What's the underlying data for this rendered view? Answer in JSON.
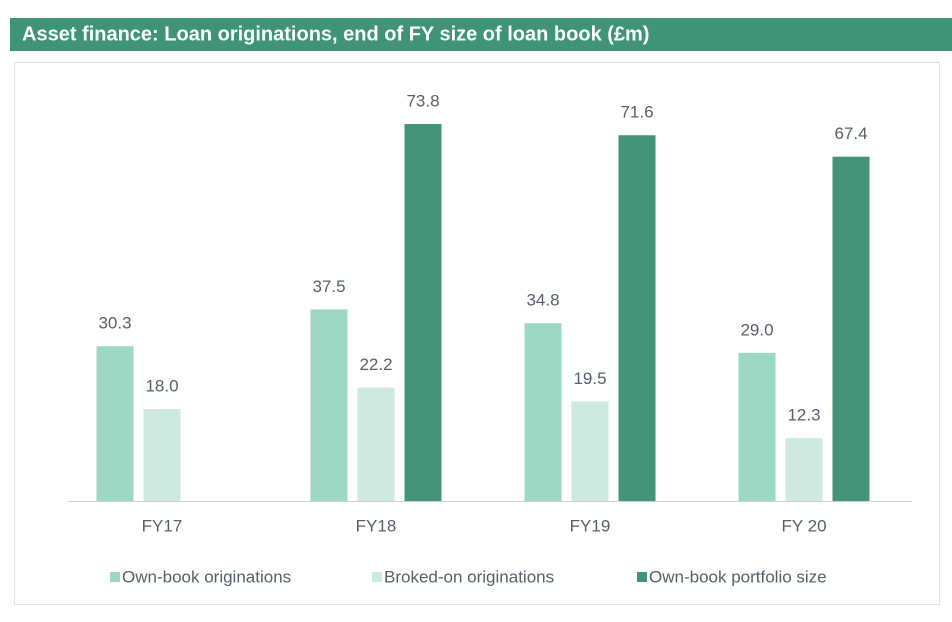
{
  "chart_data": {
    "type": "bar",
    "title": "Asset finance: Loan originations, end of FY size of loan book (£m)",
    "categories": [
      "FY17",
      "FY18",
      "FY19",
      "FY 20"
    ],
    "series": [
      {
        "name": "Own-book originations",
        "color": "#9dd8c6",
        "values": [
          30.3,
          37.5,
          34.8,
          29.0
        ],
        "value_labels": [
          "30.3",
          "37.5",
          "34.8",
          "29.0"
        ]
      },
      {
        "name": "Broked-on originations",
        "color": "#cde9e1",
        "values": [
          18.0,
          22.2,
          19.5,
          12.3
        ],
        "value_labels": [
          "18.0",
          "22.2",
          "19.5",
          "12.3"
        ]
      },
      {
        "name": "Own-book portfolio size",
        "color": "#42937a",
        "values": [
          null,
          73.8,
          71.6,
          67.4
        ],
        "value_labels": [
          null,
          "73.8",
          "71.6",
          "67.4"
        ]
      }
    ],
    "legend": "bottom"
  }
}
